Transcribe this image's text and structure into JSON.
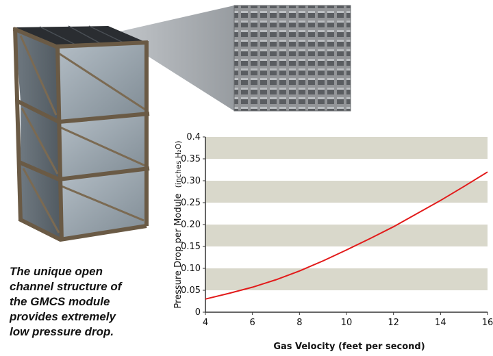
{
  "caption": {
    "lines": [
      "The unique open",
      "channel structure of",
      "the GMCS module",
      "provides extremely",
      "low pressure drop."
    ]
  },
  "colors": {
    "curve": "#e21a1a",
    "band": "#d9d8cb",
    "axis": "#333333",
    "module_metal": "#9aa5ad",
    "module_frame": "#6a5a45",
    "honeycomb": "#777a7d"
  },
  "icons": {
    "module_photo": "catalyst-module-illustration",
    "zoom_photo": "honeycomb-channel-closeup"
  },
  "chart_data": {
    "type": "line",
    "xlabel": "Gas Velocity (feet per second)",
    "ylabel_main": "Pressure Drop per Module",
    "ylabel_unit": "(inches H₂O)",
    "xlim": [
      4,
      16
    ],
    "ylim": [
      0,
      0.4
    ],
    "x_ticks": [
      "4",
      "6",
      "8",
      "10",
      "12",
      "14",
      "16"
    ],
    "y_ticks": [
      "0",
      "0.05",
      "0.10",
      "0.15",
      "0.20",
      "0.25",
      "0.30",
      "0.35",
      "0.4"
    ],
    "bands": [
      [
        0.05,
        0.1
      ],
      [
        0.15,
        0.2
      ],
      [
        0.25,
        0.3
      ],
      [
        0.35,
        0.4
      ]
    ],
    "grid": false,
    "series": [
      {
        "x": [
          4,
          5,
          6,
          7,
          8,
          9,
          10,
          11,
          12,
          13,
          14,
          15,
          16
        ],
        "values": [
          0.03,
          0.043,
          0.057,
          0.074,
          0.094,
          0.117,
          0.142,
          0.168,
          0.195,
          0.225,
          0.255,
          0.287,
          0.32
        ]
      }
    ]
  }
}
